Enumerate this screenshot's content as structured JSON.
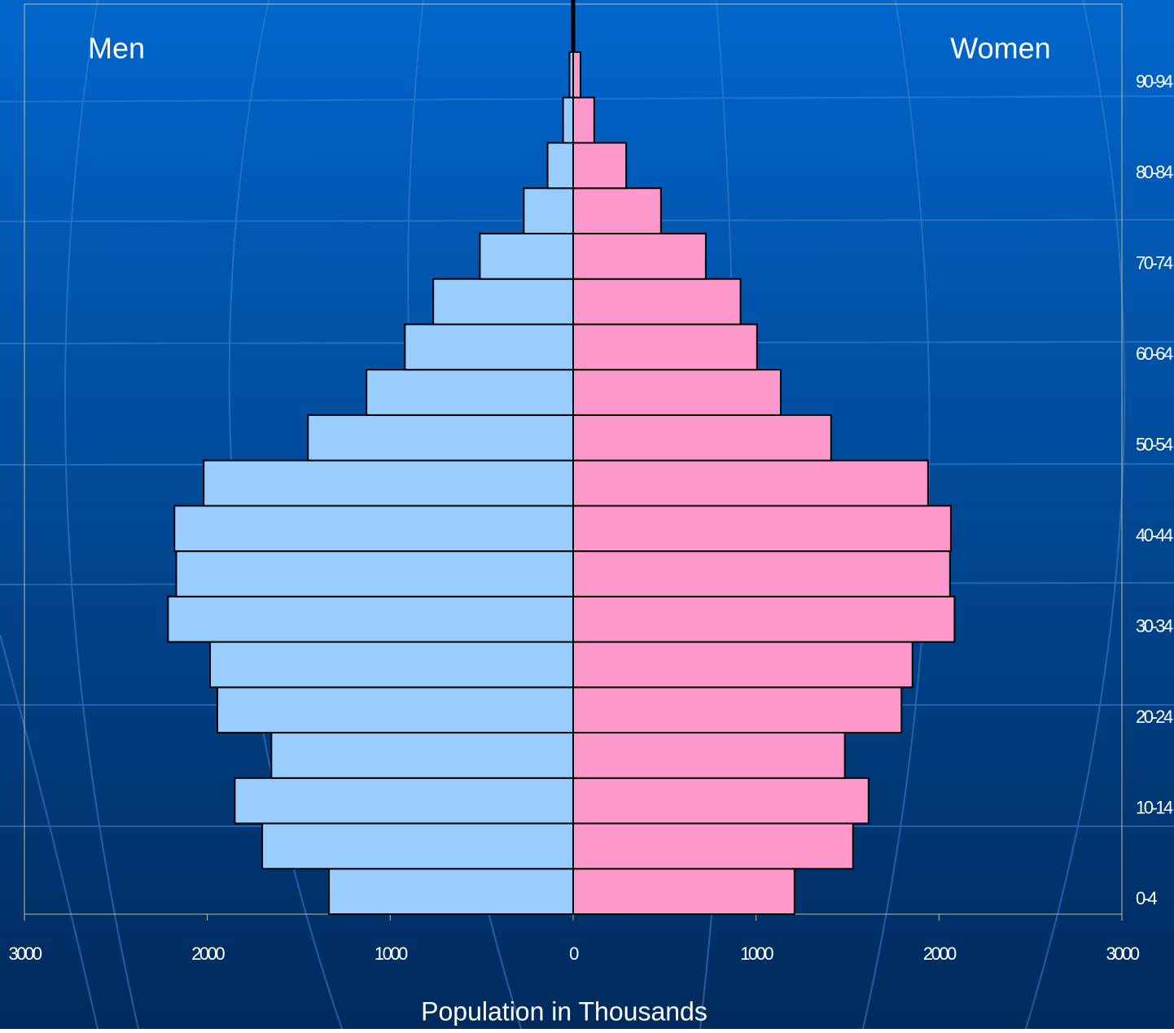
{
  "chart_data": {
    "type": "pyramid",
    "xlabel": "Population in Thousands",
    "categories": [
      "0-4",
      null,
      "10-14",
      null,
      "20-24",
      null,
      "30-34",
      null,
      "40-44",
      null,
      "50-54",
      null,
      "60-64",
      null,
      "70-74",
      null,
      "80-84",
      null,
      "90-94"
    ],
    "series": [
      {
        "name": "Men",
        "color": "#99ccff",
        "values": [
          1335,
          1700,
          1850,
          1650,
          1945,
          1985,
          2215,
          2170,
          2180,
          2020,
          1450,
          1130,
          920,
          765,
          510,
          270,
          140,
          55,
          20
        ]
      },
      {
        "name": "Women",
        "color": "#ff99cc",
        "values": [
          1210,
          1530,
          1615,
          1485,
          1795,
          1855,
          2085,
          2060,
          2065,
          1940,
          1410,
          1135,
          1005,
          915,
          725,
          480,
          290,
          115,
          40
        ]
      }
    ],
    "xlim": [
      -3000,
      3000
    ],
    "xticks": [
      {
        "value": -3000,
        "label": "3000"
      },
      {
        "value": -2000,
        "label": "2000"
      },
      {
        "value": -1000,
        "label": "1000"
      },
      0,
      1000,
      2000,
      3000
    ]
  }
}
